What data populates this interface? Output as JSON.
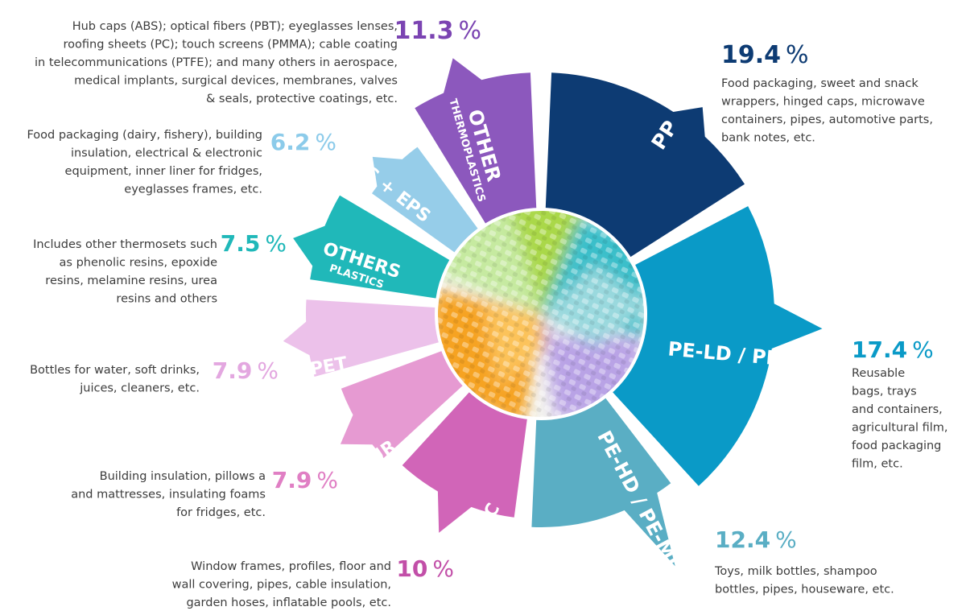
{
  "chart_data": {
    "type": "pie",
    "title": "",
    "unit": "%",
    "segments": [
      {
        "name": "PP",
        "sublabel": "",
        "value": 19.4,
        "value_label": "19.4",
        "color": "#0d3b73",
        "pct_color": "#0d3b73",
        "description": [
          "Food packaging, sweet and snack",
          "wrappers, hinged caps, microwave",
          "containers, pipes, automotive parts,",
          "bank notes, etc."
        ]
      },
      {
        "name": "PE-LD / PE-LLD",
        "sublabel": "",
        "value": 17.4,
        "value_label": "17.4",
        "color": "#0a9ac7",
        "pct_color": "#0a9ac7",
        "description": [
          "Reusable",
          "bags, trays",
          "and containers,",
          "agricultural film,",
          "food packaging",
          "film, etc."
        ]
      },
      {
        "name": "PE-HD / PE-MD",
        "sublabel": "",
        "value": 12.4,
        "value_label": "12.4",
        "color": "#5aaec4",
        "pct_color": "#5aaec4",
        "description": [
          "Toys, milk bottles, shampoo",
          "bottles, pipes, houseware, etc."
        ]
      },
      {
        "name": "PVC",
        "sublabel": "",
        "value": 10,
        "value_label": "10",
        "color": "#d165b8",
        "pct_color": "#c24fa8",
        "description": [
          "Window frames, profiles, floor and",
          "wall covering, pipes, cable insulation,",
          "garden hoses, inflatable pools, etc."
        ]
      },
      {
        "name": "PUR",
        "sublabel": "",
        "value": 7.9,
        "value_label": "7.9",
        "color": "#e69ad2",
        "pct_color": "#e07fc4",
        "description": [
          "Building insulation, pillows a",
          "and mattresses, insulating foams",
          "for fridges, etc."
        ]
      },
      {
        "name": "PET",
        "sublabel": "",
        "value": 7.9,
        "value_label": "7.9",
        "color": "#ecc1ea",
        "pct_color": "#e3a7e0",
        "description": [
          "Bottles for water, soft drinks,",
          "juices, cleaners, etc."
        ]
      },
      {
        "name": "OTHERS",
        "sublabel": "PLASTICS",
        "value": 7.5,
        "value_label": "7.5",
        "color": "#20b8b9",
        "pct_color": "#20b8b9",
        "description": [
          "Includes other thermosets such",
          "as phenolic resins, epoxide",
          "resins, melamine resins, urea",
          "resins and others"
        ]
      },
      {
        "name": "PS + EPS",
        "sublabel": "",
        "value": 6.2,
        "value_label": "6.2",
        "color": "#96cde9",
        "pct_color": "#8ccbea",
        "description": [
          "Food packaging (dairy, fishery), building",
          "insulation, electrical & electronic",
          "equipment, inner liner for fridges,",
          "eyeglasses frames, etc."
        ]
      },
      {
        "name": "OTHER",
        "sublabel": "THERMOPLASTICS",
        "value": 11.3,
        "value_label": "11.3",
        "color": "#8c58bd",
        "pct_color": "#7b44b2",
        "description": [
          "Hub caps (ABS); optical fibers (PBT); eyeglasses lenses,",
          "roofing sheets (PC); touch screens (PMMA); cable coating",
          "in telecommunications (PTFE); and many others in aerospace,",
          "medical implants, surgical devices, membranes, valves",
          "& seals, protective coatings, etc."
        ]
      }
    ]
  }
}
